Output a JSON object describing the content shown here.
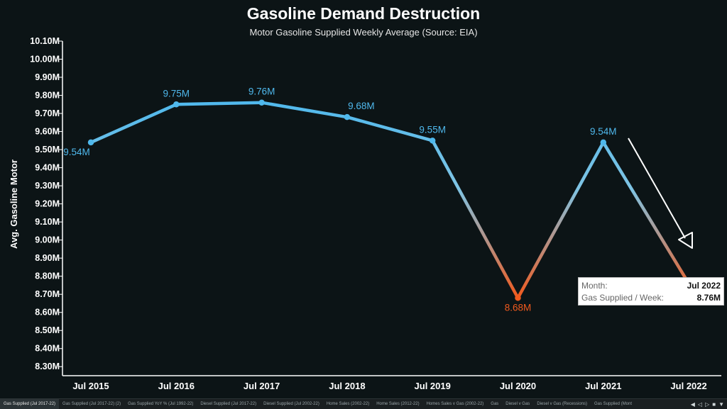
{
  "chart_data": {
    "type": "line",
    "title": "Gasoline Demand Destruction",
    "subtitle": "Motor Gasoline Supplied Weekly Average (Source: EIA)",
    "ylabel": "Avg. Gasoline Motor",
    "xlabel": "",
    "categories": [
      "Jul 2015",
      "Jul 2016",
      "Jul 2017",
      "Jul 2018",
      "Jul 2019",
      "Jul 2020",
      "Jul 2021",
      "Jul 2022"
    ],
    "values": [
      9.54,
      9.75,
      9.76,
      9.68,
      9.55,
      8.68,
      9.54,
      8.76
    ],
    "data_labels": [
      "9.54M",
      "9.75M",
      "9.76M",
      "9.68M",
      "9.55M",
      "8.68M",
      "9.54M",
      ""
    ],
    "ylim": [
      8.25,
      10.1
    ],
    "yticks": [
      8.3,
      8.4,
      8.5,
      8.6,
      8.7,
      8.8,
      8.9,
      9.0,
      9.1,
      9.2,
      9.3,
      9.4,
      9.5,
      9.6,
      9.7,
      9.8,
      9.9,
      10.0,
      10.1
    ],
    "ytick_labels": [
      "8.30M",
      "8.40M",
      "8.50M",
      "8.60M",
      "8.70M",
      "8.80M",
      "8.90M",
      "9.00M",
      "9.10M",
      "9.20M",
      "9.30M",
      "9.40M",
      "9.50M",
      "9.60M",
      "9.70M",
      "9.80M",
      "9.90M",
      "10.00M",
      "10.10M"
    ],
    "grid": false,
    "colors": {
      "high": "#4fb8ec",
      "low": "#f05a1e",
      "axis": "#ffffff"
    }
  },
  "tooltip": {
    "month_label": "Month:",
    "month_value": "Jul 2022",
    "supplied_label": "Gas Supplied / Week:",
    "supplied_value": "8.76M"
  },
  "tabs": [
    "Gas Supplied (Jul 2017-22)",
    "Gas Supplied (Jul 2017-22) (2)",
    "Gas Supplied YoY % (Jul 1992-22)",
    "Diesel Supplied (Jul 2017-22)",
    "Diesel Supplied (Jul 2002-22)",
    "Home Sales (2002-22)",
    "Home Sales (2012-22)",
    "Homes Sales v Gas (2002-22)",
    "Gas",
    "Diesel v Gas",
    "Diesel v Gas (Recessions)",
    "Gas Supplied (Mont"
  ],
  "active_tab": 0
}
